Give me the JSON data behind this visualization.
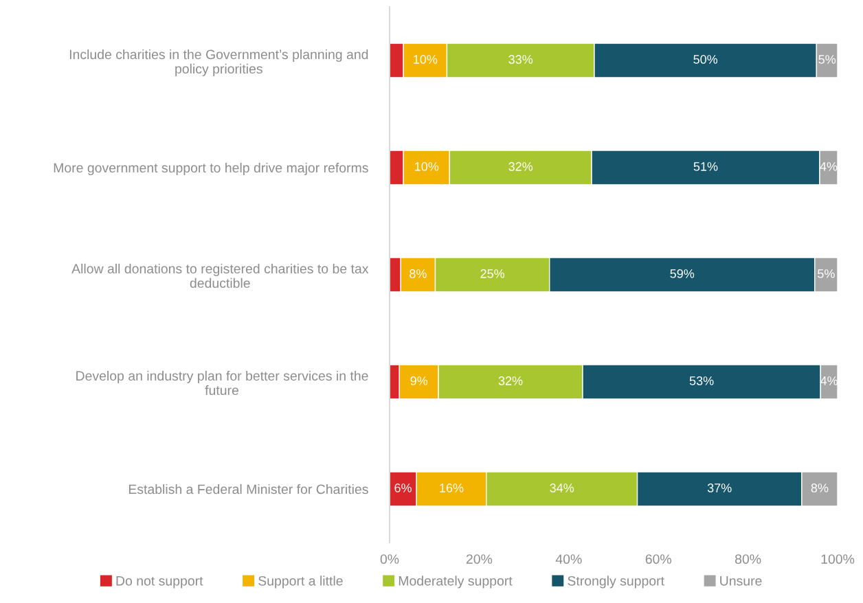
{
  "chart_data": {
    "type": "bar",
    "orientation": "horizontal",
    "stacked": true,
    "categories": [
      "Include charities in the Government’s planning and\npolicy priorities",
      "More government support to help drive major reforms",
      "Allow all donations to registered charities to be tax\ndeductible",
      "Develop an industry plan for better services in the\nfuture",
      "Establish a Federal Minister for Charities"
    ],
    "series": [
      {
        "name": "Do not support",
        "color": "#d9262b",
        "values": [
          3.1,
          3.1,
          2.5,
          2.2,
          6.0
        ],
        "value_labels": [
          null,
          null,
          null,
          null,
          "6%"
        ]
      },
      {
        "name": "Support a little",
        "color": "#f2b400",
        "values": [
          9.7,
          10.3,
          7.7,
          8.7,
          15.6
        ],
        "value_labels": [
          "10%",
          "10%",
          "8%",
          "9%",
          "16%"
        ]
      },
      {
        "name": "Moderately support",
        "color": "#a8c62f",
        "values": [
          32.9,
          31.7,
          25.5,
          32.2,
          33.7
        ],
        "value_labels": [
          "33%",
          "32%",
          "25%",
          "32%",
          "34%"
        ]
      },
      {
        "name": "Strongly support",
        "color": "#17556a",
        "values": [
          49.6,
          50.9,
          59.2,
          53.1,
          36.7
        ],
        "value_labels": [
          "50%",
          "51%",
          "59%",
          "53%",
          "37%"
        ]
      },
      {
        "name": "Unsure",
        "color": "#a5a5a5",
        "values": [
          4.7,
          4.0,
          5.1,
          3.8,
          8.0
        ],
        "value_labels": [
          "5%",
          "4%",
          "5%",
          "4%",
          "8%"
        ]
      }
    ],
    "xlim": [
      0,
      100
    ],
    "xticks": [
      {
        "value": 0,
        "label": "0%"
      },
      {
        "value": 20,
        "label": "20%"
      },
      {
        "value": 40,
        "label": "40%"
      },
      {
        "value": 60,
        "label": "60%"
      },
      {
        "value": 80,
        "label": "80%"
      },
      {
        "value": 100,
        "label": "100%"
      }
    ],
    "grid": false,
    "legend": "bottom"
  }
}
